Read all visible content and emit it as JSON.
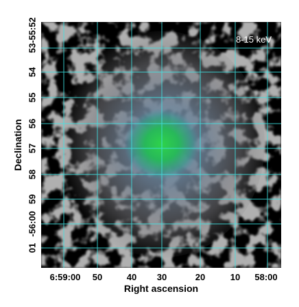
{
  "image": {
    "band_label": "8-15 keV",
    "x_axis_label": "Right ascension",
    "y_axis_label": "Declination",
    "y_ticks": [
      "-55:52",
      "53",
      "54",
      "55",
      "56",
      "57",
      "58",
      "59",
      "-56:00",
      "01"
    ],
    "x_ticks": [
      "6:59:00",
      "50",
      "40",
      "30",
      "20",
      "10",
      "58:00"
    ],
    "colors": {
      "grid": "#3fe6e6",
      "background": "#000000",
      "diffuse": "#8a8a8a",
      "halo": "#5a7fa0",
      "core": "#22cc44"
    }
  }
}
